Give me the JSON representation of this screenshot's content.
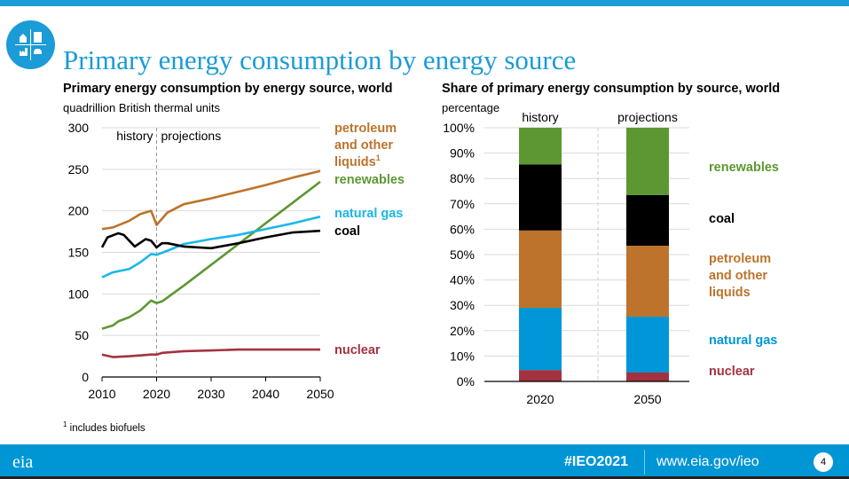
{
  "header": {
    "title": "Primary energy consumption by energy source",
    "logo_icon": "energy-sectors-icon"
  },
  "footnote": {
    "marker": "1",
    "text": "includes biofuels"
  },
  "footer": {
    "hashtag": "#IEO2021",
    "url": "www.eia.gov/ieo",
    "page": "4",
    "logo": "eia"
  },
  "colors": {
    "petroleum": "#bd732b",
    "renewables": "#5d9732",
    "natural_gas": "#0096d7",
    "natural_gas_line": "#1ab7ea",
    "coal": "#000000",
    "nuclear": "#a33340",
    "accent": "#1b9bd7"
  },
  "chart_data": [
    {
      "type": "line",
      "title": "Primary energy consumption by energy source, world",
      "ylabel": "quadrillion British thermal units",
      "ylim": [
        0,
        300
      ],
      "xlim": [
        2010,
        2050
      ],
      "yticks": [
        "0",
        "50",
        "100",
        "150",
        "200",
        "250",
        "300"
      ],
      "xticks": [
        "2010",
        "2020",
        "2030",
        "2040",
        "2050"
      ],
      "grid": true,
      "annotations": {
        "history": "history",
        "projections": "projections",
        "divider_year": 2020
      },
      "series": [
        {
          "name": "petroleum and other liquids",
          "label_lines": [
            "petroleum",
            "and other",
            "liquids"
          ],
          "superscript": "1",
          "key": "petroleum",
          "x": [
            2010,
            2012,
            2015,
            2017,
            2019,
            2020,
            2022,
            2025,
            2030,
            2035,
            2040,
            2045,
            2050
          ],
          "y": [
            178,
            180,
            188,
            196,
            200,
            183,
            198,
            208,
            215,
            223,
            231,
            240,
            248
          ]
        },
        {
          "name": "renewables",
          "label_lines": [
            "renewables"
          ],
          "key": "renewables",
          "x": [
            2010,
            2012,
            2013,
            2015,
            2017,
            2019,
            2020,
            2021,
            2025,
            2030,
            2035,
            2040,
            2045,
            2050
          ],
          "y": [
            58,
            62,
            67,
            72,
            80,
            92,
            89,
            91,
            110,
            135,
            160,
            185,
            210,
            235
          ]
        },
        {
          "name": "natural gas",
          "label_lines": [
            "natural gas"
          ],
          "key": "natural_gas_line",
          "x": [
            2010,
            2012,
            2015,
            2017,
            2019,
            2020,
            2022,
            2025,
            2030,
            2035,
            2040,
            2045,
            2050
          ],
          "y": [
            120,
            126,
            130,
            138,
            148,
            147,
            152,
            160,
            166,
            171,
            178,
            185,
            193
          ]
        },
        {
          "name": "coal",
          "label_lines": [
            "coal"
          ],
          "key": "coal",
          "x": [
            2010,
            2011,
            2013,
            2014,
            2016,
            2018,
            2019,
            2020,
            2021,
            2022,
            2025,
            2030,
            2035,
            2040,
            2045,
            2050
          ],
          "y": [
            156,
            168,
            173,
            171,
            157,
            166,
            164,
            156,
            161,
            161,
            157,
            155,
            161,
            168,
            174,
            176
          ]
        },
        {
          "name": "nuclear",
          "label_lines": [
            "nuclear"
          ],
          "key": "nuclear",
          "x": [
            2010,
            2012,
            2015,
            2017,
            2019,
            2020,
            2021,
            2025,
            2030,
            2035,
            2040,
            2045,
            2050
          ],
          "y": [
            27,
            24,
            25,
            26,
            27,
            27,
            29,
            31,
            32,
            33,
            33,
            33,
            33
          ]
        }
      ]
    },
    {
      "type": "bar",
      "stacked": true,
      "title": "Share of primary energy consumption by source, world",
      "ylabel": "percentage",
      "ylim": [
        0,
        100
      ],
      "yticks": [
        "0%",
        "10%",
        "20%",
        "30%",
        "40%",
        "50%",
        "60%",
        "70%",
        "80%",
        "90%",
        "100%"
      ],
      "categories": [
        "2020",
        "2050"
      ],
      "group_labels": [
        "history",
        "projections"
      ],
      "series": [
        {
          "name": "nuclear",
          "key": "nuclear",
          "values": [
            4.5,
            3.5
          ]
        },
        {
          "name": "natural gas",
          "key": "natural_gas",
          "values": [
            24.5,
            22
          ]
        },
        {
          "name": "petroleum and other liquids",
          "label_lines": [
            "petroleum",
            "and other",
            "liquids"
          ],
          "key": "petroleum",
          "values": [
            30.5,
            28
          ]
        },
        {
          "name": "coal",
          "key": "coal",
          "values": [
            26,
            20
          ]
        },
        {
          "name": "renewables",
          "key": "renewables",
          "values": [
            14.5,
            26.5
          ]
        }
      ]
    }
  ]
}
